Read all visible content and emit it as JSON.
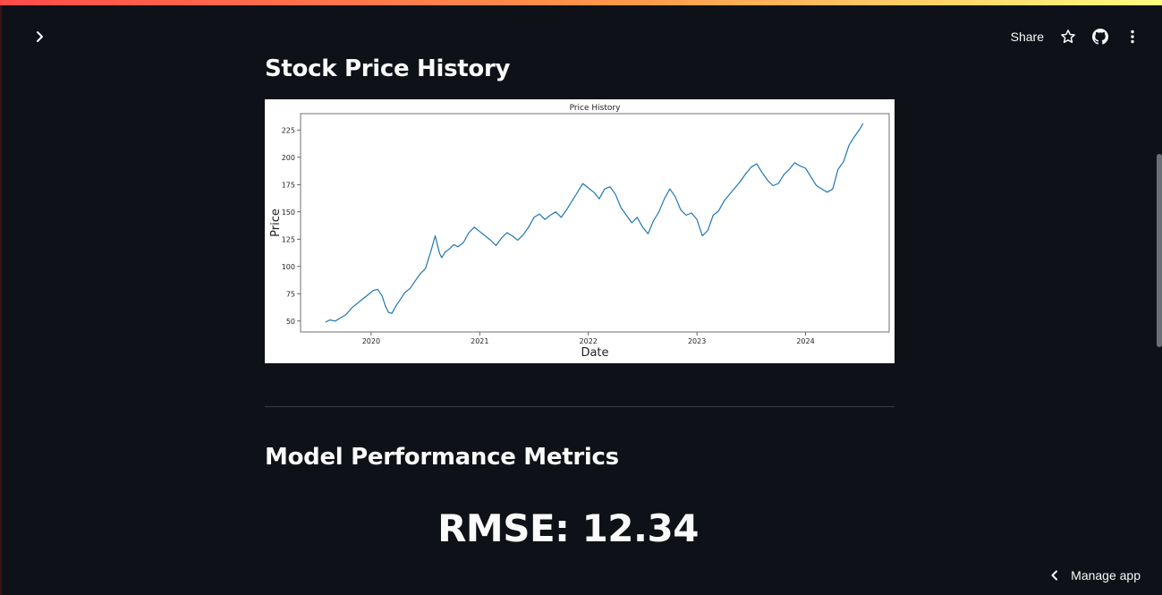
{
  "header": {
    "share_label": "Share",
    "sidebar_toggle_icon": "chevron-right-icon",
    "icons": [
      "star-icon",
      "github-icon",
      "more-vertical-icon"
    ]
  },
  "sections": {
    "history_title": "Stock Price History",
    "metrics_title": "Model Performance Metrics"
  },
  "metrics": {
    "rmse_text": "RMSE: 12.34"
  },
  "footer": {
    "manage_app_label": "Manage app",
    "manage_icon": "chevron-left-icon"
  },
  "colors": {
    "background": "#0e1117",
    "line": "#1f77b4",
    "accent": "#ff4b4b"
  },
  "chart_data": {
    "type": "line",
    "title": "Price History",
    "xlabel": "Date",
    "ylabel": "Price",
    "xlim": [
      2019.35,
      2024.77
    ],
    "ylim": [
      40,
      240
    ],
    "x_ticks": [
      "2020",
      "2021",
      "2022",
      "2023",
      "2024"
    ],
    "y_ticks": [
      50,
      75,
      100,
      125,
      150,
      175,
      200,
      225
    ],
    "grid": false,
    "series": [
      {
        "x": [
          2019.58,
          2019.62,
          2019.67,
          2019.72,
          2019.77,
          2019.82,
          2019.87,
          2019.92,
          2019.97,
          2020.02,
          2020.06,
          2020.1,
          2020.13,
          2020.16,
          2020.19,
          2020.23,
          2020.27,
          2020.31,
          2020.36,
          2020.4,
          2020.45,
          2020.5,
          2020.55,
          2020.59,
          2020.63,
          2020.65,
          2020.68,
          2020.72,
          2020.76,
          2020.8,
          2020.85,
          2020.9,
          2020.95,
          2021.0,
          2021.05,
          2021.1,
          2021.15,
          2021.2,
          2021.25,
          2021.3,
          2021.35,
          2021.4,
          2021.45,
          2021.5,
          2021.55,
          2021.6,
          2021.65,
          2021.7,
          2021.75,
          2021.8,
          2021.85,
          2021.9,
          2021.95,
          2022.0,
          2022.05,
          2022.1,
          2022.15,
          2022.2,
          2022.25,
          2022.3,
          2022.35,
          2022.4,
          2022.45,
          2022.5,
          2022.55,
          2022.6,
          2022.65,
          2022.7,
          2022.75,
          2022.8,
          2022.85,
          2022.9,
          2022.95,
          2023.0,
          2023.05,
          2023.1,
          2023.15,
          2023.2,
          2023.25,
          2023.3,
          2023.35,
          2023.4,
          2023.45,
          2023.5,
          2023.55,
          2023.6,
          2023.65,
          2023.7,
          2023.75,
          2023.8,
          2023.85,
          2023.9,
          2023.95,
          2024.0,
          2024.05,
          2024.1,
          2024.15,
          2024.2,
          2024.25,
          2024.3,
          2024.35,
          2024.4,
          2024.45,
          2024.5,
          2024.53
        ],
        "y": [
          49,
          51,
          50,
          53,
          56,
          62,
          66,
          70,
          74,
          78,
          79,
          73,
          64,
          58,
          57,
          64,
          70,
          76,
          80,
          86,
          93,
          98,
          114,
          128,
          112,
          108,
          113,
          116,
          120,
          118,
          122,
          131,
          136,
          132,
          128,
          124,
          119,
          126,
          131,
          128,
          124,
          129,
          136,
          145,
          148,
          143,
          147,
          150,
          145,
          152,
          160,
          168,
          176,
          172,
          168,
          162,
          171,
          173,
          166,
          154,
          147,
          140,
          145,
          136,
          130,
          142,
          150,
          162,
          171,
          164,
          152,
          147,
          149,
          143,
          128,
          133,
          147,
          151,
          160,
          166,
          172,
          178,
          185,
          191,
          194,
          186,
          179,
          174,
          176,
          184,
          189,
          195,
          192,
          190,
          182,
          174,
          171,
          168,
          171,
          189,
          196,
          211,
          219,
          226,
          231
        ]
      }
    ]
  }
}
